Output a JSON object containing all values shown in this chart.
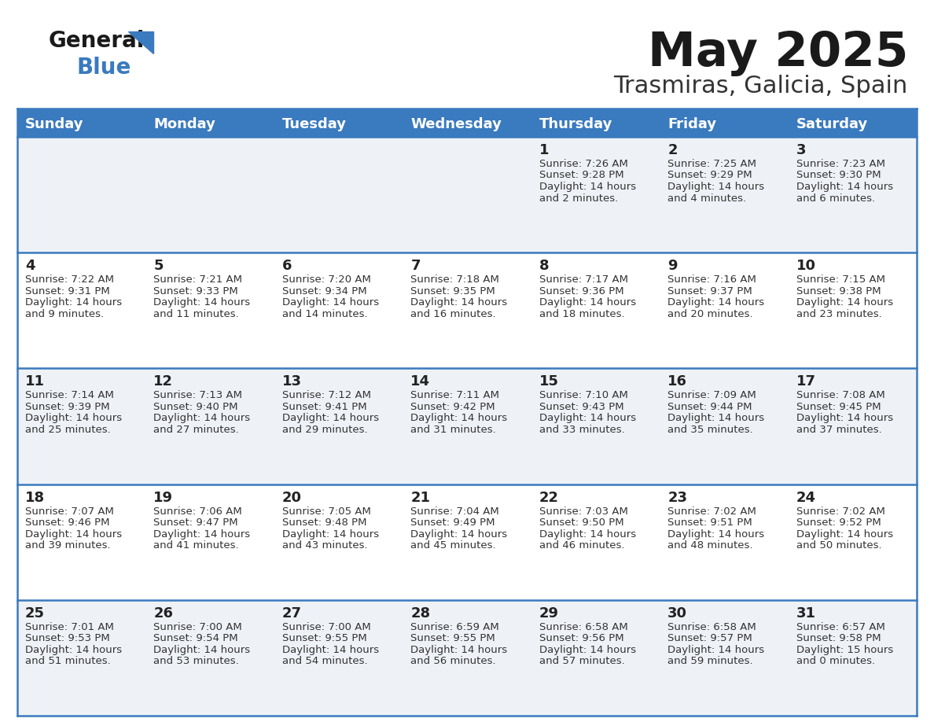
{
  "title": "May 2025",
  "subtitle": "Trasmiras, Galicia, Spain",
  "days_of_week": [
    "Sunday",
    "Monday",
    "Tuesday",
    "Wednesday",
    "Thursday",
    "Friday",
    "Saturday"
  ],
  "header_bg": "#3a7abf",
  "header_text_color": "#ffffff",
  "row_bg_light": "#eef2f7",
  "row_bg_white": "#ffffff",
  "cell_border_color": "#3a7abf",
  "day_number_color": "#222222",
  "info_text_color": "#333333",
  "title_color": "#1a1a1a",
  "subtitle_color": "#333333",
  "logo_general_color": "#1a1a1a",
  "logo_blue_color": "#3a7abf",
  "logo_triangle_color": "#3a7abf",
  "calendar_data": [
    [
      {
        "day": "",
        "sunrise": "",
        "sunset": "",
        "daylight": ""
      },
      {
        "day": "",
        "sunrise": "",
        "sunset": "",
        "daylight": ""
      },
      {
        "day": "",
        "sunrise": "",
        "sunset": "",
        "daylight": ""
      },
      {
        "day": "",
        "sunrise": "",
        "sunset": "",
        "daylight": ""
      },
      {
        "day": "1",
        "sunrise": "7:26 AM",
        "sunset": "9:28 PM",
        "daylight": "14 hours\nand 2 minutes."
      },
      {
        "day": "2",
        "sunrise": "7:25 AM",
        "sunset": "9:29 PM",
        "daylight": "14 hours\nand 4 minutes."
      },
      {
        "day": "3",
        "sunrise": "7:23 AM",
        "sunset": "9:30 PM",
        "daylight": "14 hours\nand 6 minutes."
      }
    ],
    [
      {
        "day": "4",
        "sunrise": "7:22 AM",
        "sunset": "9:31 PM",
        "daylight": "14 hours\nand 9 minutes."
      },
      {
        "day": "5",
        "sunrise": "7:21 AM",
        "sunset": "9:33 PM",
        "daylight": "14 hours\nand 11 minutes."
      },
      {
        "day": "6",
        "sunrise": "7:20 AM",
        "sunset": "9:34 PM",
        "daylight": "14 hours\nand 14 minutes."
      },
      {
        "day": "7",
        "sunrise": "7:18 AM",
        "sunset": "9:35 PM",
        "daylight": "14 hours\nand 16 minutes."
      },
      {
        "day": "8",
        "sunrise": "7:17 AM",
        "sunset": "9:36 PM",
        "daylight": "14 hours\nand 18 minutes."
      },
      {
        "day": "9",
        "sunrise": "7:16 AM",
        "sunset": "9:37 PM",
        "daylight": "14 hours\nand 20 minutes."
      },
      {
        "day": "10",
        "sunrise": "7:15 AM",
        "sunset": "9:38 PM",
        "daylight": "14 hours\nand 23 minutes."
      }
    ],
    [
      {
        "day": "11",
        "sunrise": "7:14 AM",
        "sunset": "9:39 PM",
        "daylight": "14 hours\nand 25 minutes."
      },
      {
        "day": "12",
        "sunrise": "7:13 AM",
        "sunset": "9:40 PM",
        "daylight": "14 hours\nand 27 minutes."
      },
      {
        "day": "13",
        "sunrise": "7:12 AM",
        "sunset": "9:41 PM",
        "daylight": "14 hours\nand 29 minutes."
      },
      {
        "day": "14",
        "sunrise": "7:11 AM",
        "sunset": "9:42 PM",
        "daylight": "14 hours\nand 31 minutes."
      },
      {
        "day": "15",
        "sunrise": "7:10 AM",
        "sunset": "9:43 PM",
        "daylight": "14 hours\nand 33 minutes."
      },
      {
        "day": "16",
        "sunrise": "7:09 AM",
        "sunset": "9:44 PM",
        "daylight": "14 hours\nand 35 minutes."
      },
      {
        "day": "17",
        "sunrise": "7:08 AM",
        "sunset": "9:45 PM",
        "daylight": "14 hours\nand 37 minutes."
      }
    ],
    [
      {
        "day": "18",
        "sunrise": "7:07 AM",
        "sunset": "9:46 PM",
        "daylight": "14 hours\nand 39 minutes."
      },
      {
        "day": "19",
        "sunrise": "7:06 AM",
        "sunset": "9:47 PM",
        "daylight": "14 hours\nand 41 minutes."
      },
      {
        "day": "20",
        "sunrise": "7:05 AM",
        "sunset": "9:48 PM",
        "daylight": "14 hours\nand 43 minutes."
      },
      {
        "day": "21",
        "sunrise": "7:04 AM",
        "sunset": "9:49 PM",
        "daylight": "14 hours\nand 45 minutes."
      },
      {
        "day": "22",
        "sunrise": "7:03 AM",
        "sunset": "9:50 PM",
        "daylight": "14 hours\nand 46 minutes."
      },
      {
        "day": "23",
        "sunrise": "7:02 AM",
        "sunset": "9:51 PM",
        "daylight": "14 hours\nand 48 minutes."
      },
      {
        "day": "24",
        "sunrise": "7:02 AM",
        "sunset": "9:52 PM",
        "daylight": "14 hours\nand 50 minutes."
      }
    ],
    [
      {
        "day": "25",
        "sunrise": "7:01 AM",
        "sunset": "9:53 PM",
        "daylight": "14 hours\nand 51 minutes."
      },
      {
        "day": "26",
        "sunrise": "7:00 AM",
        "sunset": "9:54 PM",
        "daylight": "14 hours\nand 53 minutes."
      },
      {
        "day": "27",
        "sunrise": "7:00 AM",
        "sunset": "9:55 PM",
        "daylight": "14 hours\nand 54 minutes."
      },
      {
        "day": "28",
        "sunrise": "6:59 AM",
        "sunset": "9:55 PM",
        "daylight": "14 hours\nand 56 minutes."
      },
      {
        "day": "29",
        "sunrise": "6:58 AM",
        "sunset": "9:56 PM",
        "daylight": "14 hours\nand 57 minutes."
      },
      {
        "day": "30",
        "sunrise": "6:58 AM",
        "sunset": "9:57 PM",
        "daylight": "14 hours\nand 59 minutes."
      },
      {
        "day": "31",
        "sunrise": "6:57 AM",
        "sunset": "9:58 PM",
        "daylight": "15 hours\nand 0 minutes."
      }
    ]
  ]
}
